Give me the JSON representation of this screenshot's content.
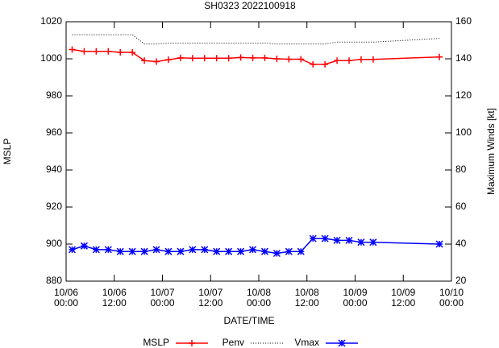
{
  "chart_data": {
    "type": "line",
    "title": "SH0323 2022100918",
    "x_label": "DATE/TIME",
    "y_label": "MSLP",
    "y2_label": "Maximum Winds [kt]",
    "x": [
      1.5,
      4.5,
      7.5,
      10.5,
      13.5,
      16.5,
      19.5,
      22.5,
      25.5,
      28.5,
      31.5,
      34.5,
      37.5,
      40.5,
      43.5,
      46.5,
      49.5,
      52.5,
      55.5,
      58.5,
      61.5,
      64.5,
      67.5,
      70.5,
      73.5,
      76.5,
      93
    ],
    "xlim": [
      0,
      96
    ],
    "xticks": [
      {
        "value": 0,
        "label": "10/06\n00:00"
      },
      {
        "value": 12,
        "label": "10/06\n12:00"
      },
      {
        "value": 24,
        "label": "10/07\n00:00"
      },
      {
        "value": 36,
        "label": "10/07\n12:00"
      },
      {
        "value": 48,
        "label": "10/08\n00:00"
      },
      {
        "value": 60,
        "label": "10/08\n12:00"
      },
      {
        "value": 72,
        "label": "10/09\n00:00"
      },
      {
        "value": 84,
        "label": "10/09\n12:00"
      },
      {
        "value": 96,
        "label": "10/10\n00:00"
      }
    ],
    "ylim": [
      880,
      1020
    ],
    "yticks": [
      880,
      900,
      920,
      940,
      960,
      980,
      1000,
      1020
    ],
    "y2lim": [
      20,
      160
    ],
    "y2ticks": [
      20,
      40,
      60,
      80,
      100,
      120,
      140,
      160
    ],
    "series": [
      {
        "name": "MSLP",
        "color": "#ff0000",
        "marker": "plus",
        "values": [
          1005,
          1004,
          1004,
          1004,
          1003.5,
          1003.5,
          999,
          998.5,
          999.5,
          1000.5,
          1000.3,
          1000.3,
          1000.3,
          1000.3,
          1000.7,
          1000.5,
          1000.5,
          1000,
          999.8,
          999.8,
          997,
          997,
          999,
          999,
          999.7,
          999.7,
          1001
        ]
      },
      {
        "name": "Penv",
        "color": "#000000",
        "dash": true,
        "values": [
          1013,
          1013,
          1013,
          1013,
          1013,
          1013,
          1008,
          1008,
          1008.5,
          1008.5,
          1008.5,
          1008.5,
          1008.5,
          1008.5,
          1008.5,
          1008.5,
          1008.5,
          1008,
          1008,
          1008,
          1008,
          1008,
          1009,
          1009,
          1009,
          1009,
          1011
        ]
      },
      {
        "name": "Vmax",
        "color": "#0000ff",
        "marker": "star",
        "axis": "y2",
        "values": [
          37,
          39,
          37,
          37,
          36,
          36,
          36,
          37,
          36,
          36,
          37,
          37,
          36,
          36,
          36,
          37,
          36,
          35,
          36,
          36,
          43,
          43,
          42,
          42,
          41,
          41,
          40
        ]
      }
    ]
  }
}
